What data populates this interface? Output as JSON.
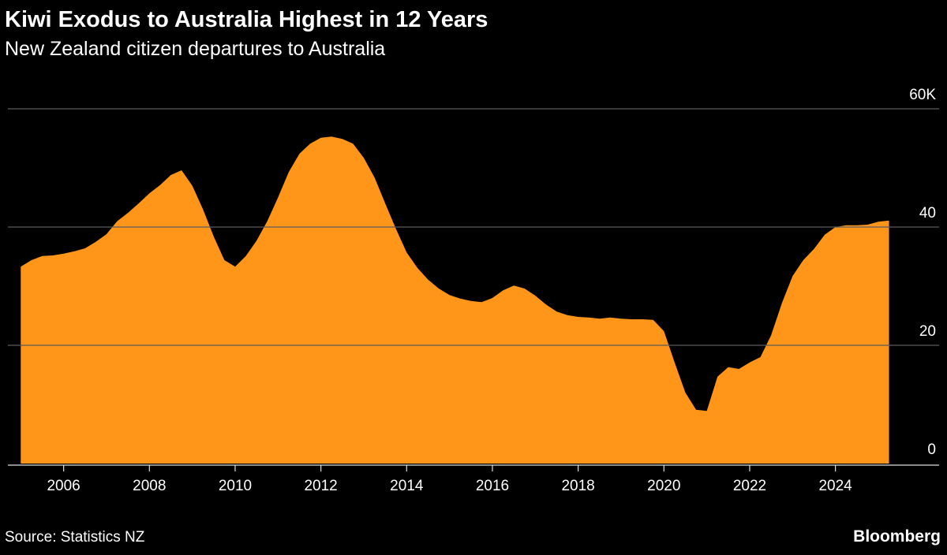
{
  "chart_data": {
    "type": "area",
    "title": "Kiwi Exodus to Australia Highest in 12 Years",
    "subtitle": "New Zealand citizen departures to Australia",
    "source": "Source: Statistics NZ",
    "logo": "Bloomberg",
    "color": "#ff961a",
    "grid": true,
    "x": [
      2005,
      2005.25,
      2005.5,
      2005.75,
      2006,
      2006.25,
      2006.5,
      2006.75,
      2007,
      2007.25,
      2007.5,
      2007.75,
      2008,
      2008.25,
      2008.5,
      2008.75,
      2009,
      2009.25,
      2009.5,
      2009.75,
      2010,
      2010.25,
      2010.5,
      2010.75,
      2011,
      2011.25,
      2011.5,
      2011.75,
      2012,
      2012.25,
      2012.5,
      2012.75,
      2013,
      2013.25,
      2013.5,
      2013.75,
      2014,
      2014.25,
      2014.5,
      2014.75,
      2015,
      2015.25,
      2015.5,
      2015.75,
      2016,
      2016.25,
      2016.5,
      2016.75,
      2017,
      2017.25,
      2017.5,
      2017.75,
      2018,
      2018.25,
      2018.5,
      2018.75,
      2019,
      2019.25,
      2019.5,
      2019.75,
      2020,
      2020.25,
      2020.5,
      2020.75,
      2021,
      2021.25,
      2021.5,
      2021.75,
      2022,
      2022.25,
      2022.5,
      2022.75,
      2023,
      2023.25,
      2023.5,
      2023.75,
      2024,
      2024.25,
      2024.5,
      2024.75,
      2025,
      2025.25
    ],
    "values": [
      33.3,
      34.4,
      35.1,
      35.2,
      35.5,
      35.9,
      36.4,
      37.5,
      38.8,
      41,
      42.4,
      44,
      45.7,
      47.1,
      48.8,
      49.6,
      47,
      43,
      38.4,
      34.4,
      33.3,
      35.1,
      37.7,
      41,
      45,
      49.3,
      52.4,
      54.1,
      55.1,
      55.3,
      54.9,
      54.1,
      51.7,
      48.4,
      44,
      39.7,
      35.7,
      33.1,
      31.1,
      29.6,
      28.5,
      27.9,
      27.5,
      27.3,
      28,
      29.3,
      30.1,
      29.6,
      28.4,
      26.9,
      25.7,
      25.1,
      24.8,
      24.7,
      24.5,
      24.7,
      24.5,
      24.4,
      24.4,
      24.3,
      22.4,
      17.1,
      12,
      9.1,
      8.9,
      14.7,
      16.3,
      16,
      17.1,
      18,
      21.7,
      27.1,
      31.7,
      34.4,
      36.3,
      38.7,
      40,
      40.3,
      40.3,
      40.4,
      40.9,
      41.1
    ],
    "xlim": [
      2004.7,
      2026.05
    ],
    "xticks": [
      2006,
      2008,
      2010,
      2012,
      2014,
      2016,
      2018,
      2020,
      2022,
      2024
    ],
    "ylim": [
      0,
      60
    ],
    "yticks": [
      0,
      20,
      40,
      {
        "value": 60,
        "label": "60K"
      }
    ]
  }
}
